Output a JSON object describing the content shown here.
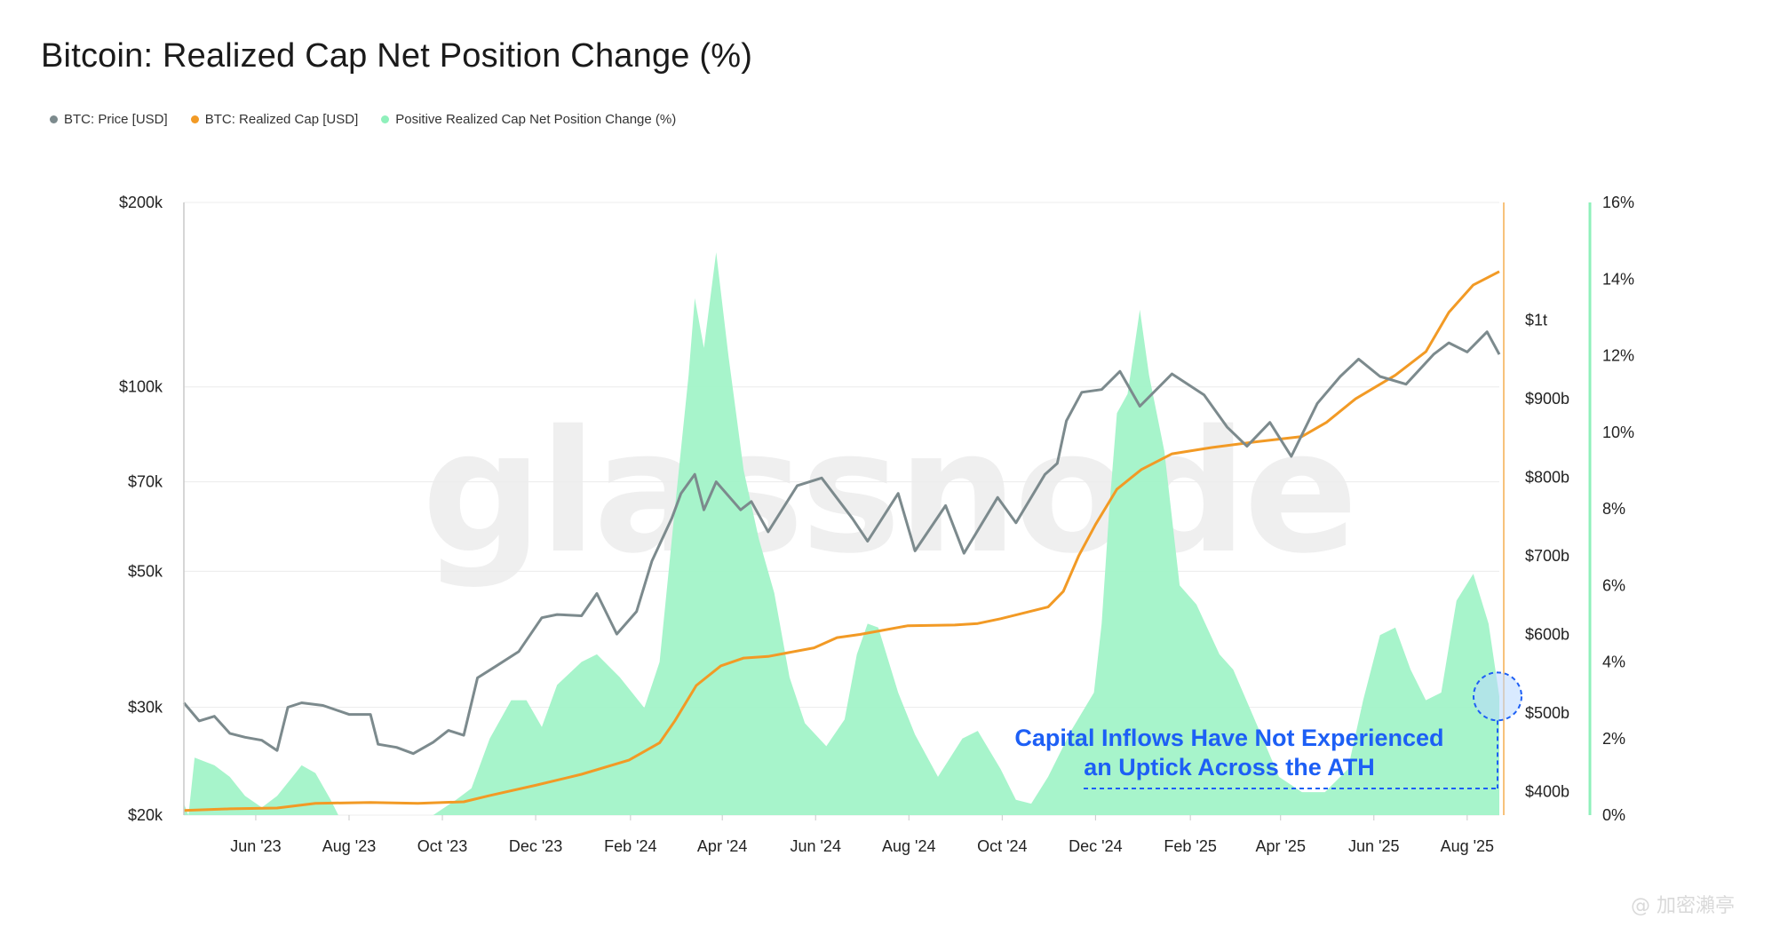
{
  "chart_data": {
    "type": "line",
    "title": "Bitcoin: Realized Cap Net Position Change (%)",
    "legend": [
      {
        "name": "BTC: Price [USD]",
        "color": "#7c8a8d"
      },
      {
        "name": "BTC: Realized Cap [USD]",
        "color": "#f29a25"
      },
      {
        "name": "Positive Realized Cap Net Position Change (%)",
        "color": "#8ff0bb"
      }
    ],
    "legend_placement": "top-left",
    "x_tick_labels": [
      "Jun '23",
      "Aug '23",
      "Oct '23",
      "Dec '23",
      "Feb '24",
      "Apr '24",
      "Jun '24",
      "Aug '24",
      "Oct '24",
      "Dec '24",
      "Feb '25",
      "Apr '25",
      "Jun '25",
      "Aug '25"
    ],
    "x_ticks": [
      "2023-06-01",
      "2023-08-01",
      "2023-10-01",
      "2023-12-01",
      "2024-02-01",
      "2024-04-01",
      "2024-06-01",
      "2024-08-01",
      "2024-10-01",
      "2024-12-01",
      "2025-02-01",
      "2025-04-01",
      "2025-06-01",
      "2025-08-01"
    ],
    "x_range": [
      "2023-04-15",
      "2025-08-22"
    ],
    "y_left": {
      "scale": "log",
      "range": [
        20000,
        200000
      ],
      "ticks": [
        200000,
        100000,
        70000,
        50000,
        30000,
        20000
      ],
      "tick_labels": [
        "$200k",
        "$100k",
        "$70k",
        "$50k",
        "$30k",
        "$20k"
      ]
    },
    "y_right_cap": {
      "scale": "linear",
      "range": [
        370,
        1150
      ],
      "ticks": [
        1000,
        900,
        800,
        700,
        600,
        500,
        400
      ],
      "tick_labels": [
        "$1t",
        "$900b",
        "$800b",
        "$700b",
        "$600b",
        "$500b",
        "$400b"
      ]
    },
    "y_right_pct": {
      "scale": "linear",
      "range": [
        0,
        16
      ],
      "ticks": [
        16,
        14,
        12,
        10,
        8,
        6,
        4,
        2,
        0
      ],
      "tick_labels": [
        "16%",
        "14%",
        "12%",
        "10%",
        "8%",
        "6%",
        "4%",
        "2%",
        "0%"
      ]
    },
    "series": [
      {
        "name": "BTC: Price [USD]",
        "axis": "left",
        "points": [
          [
            "2023-04-15",
            30500
          ],
          [
            "2023-04-25",
            28500
          ],
          [
            "2023-05-05",
            29000
          ],
          [
            "2023-05-15",
            27200
          ],
          [
            "2023-05-25",
            26800
          ],
          [
            "2023-06-05",
            26500
          ],
          [
            "2023-06-15",
            25500
          ],
          [
            "2023-06-22",
            30000
          ],
          [
            "2023-07-01",
            30500
          ],
          [
            "2023-07-15",
            30200
          ],
          [
            "2023-08-01",
            29200
          ],
          [
            "2023-08-15",
            29200
          ],
          [
            "2023-08-20",
            26100
          ],
          [
            "2023-09-01",
            25800
          ],
          [
            "2023-09-12",
            25200
          ],
          [
            "2023-09-25",
            26300
          ],
          [
            "2023-10-05",
            27500
          ],
          [
            "2023-10-15",
            27000
          ],
          [
            "2023-10-24",
            33500
          ],
          [
            "2023-11-05",
            35000
          ],
          [
            "2023-11-20",
            37000
          ],
          [
            "2023-12-05",
            42000
          ],
          [
            "2023-12-15",
            42500
          ],
          [
            "2023-12-31",
            42300
          ],
          [
            "2024-01-10",
            46000
          ],
          [
            "2024-01-23",
            39500
          ],
          [
            "2024-02-05",
            43000
          ],
          [
            "2024-02-15",
            52000
          ],
          [
            "2024-02-28",
            61000
          ],
          [
            "2024-03-05",
            67000
          ],
          [
            "2024-03-14",
            72000
          ],
          [
            "2024-03-20",
            63000
          ],
          [
            "2024-03-28",
            70000
          ],
          [
            "2024-04-13",
            63000
          ],
          [
            "2024-04-20",
            65000
          ],
          [
            "2024-05-01",
            58000
          ],
          [
            "2024-05-20",
            69000
          ],
          [
            "2024-06-05",
            71000
          ],
          [
            "2024-06-25",
            61000
          ],
          [
            "2024-07-05",
            56000
          ],
          [
            "2024-07-25",
            67000
          ],
          [
            "2024-08-05",
            54000
          ],
          [
            "2024-08-25",
            64000
          ],
          [
            "2024-09-06",
            53500
          ],
          [
            "2024-09-28",
            66000
          ],
          [
            "2024-10-10",
            60000
          ],
          [
            "2024-10-29",
            72000
          ],
          [
            "2024-11-06",
            75000
          ],
          [
            "2024-11-12",
            88000
          ],
          [
            "2024-11-22",
            98000
          ],
          [
            "2024-12-05",
            99000
          ],
          [
            "2024-12-17",
            106000
          ],
          [
            "2024-12-30",
            93000
          ],
          [
            "2025-01-20",
            105000
          ],
          [
            "2025-02-10",
            97000
          ],
          [
            "2025-02-25",
            86000
          ],
          [
            "2025-03-10",
            80000
          ],
          [
            "2025-03-25",
            87500
          ],
          [
            "2025-04-08",
            77000
          ],
          [
            "2025-04-25",
            94000
          ],
          [
            "2025-05-10",
            104000
          ],
          [
            "2025-05-22",
            111000
          ],
          [
            "2025-06-05",
            104000
          ],
          [
            "2025-06-22",
            101000
          ],
          [
            "2025-07-10",
            113000
          ],
          [
            "2025-07-20",
            118000
          ],
          [
            "2025-08-01",
            114000
          ],
          [
            "2025-08-14",
            123000
          ],
          [
            "2025-08-22",
            113000
          ]
        ]
      },
      {
        "name": "BTC: Realized Cap [USD]",
        "axis": "right_cap",
        "points": [
          [
            "2023-04-15",
            376
          ],
          [
            "2023-05-15",
            378
          ],
          [
            "2023-06-15",
            379
          ],
          [
            "2023-07-10",
            385
          ],
          [
            "2023-08-15",
            386
          ],
          [
            "2023-09-15",
            385
          ],
          [
            "2023-10-15",
            387
          ],
          [
            "2023-11-01",
            395
          ],
          [
            "2023-12-01",
            408
          ],
          [
            "2023-12-31",
            422
          ],
          [
            "2024-01-31",
            440
          ],
          [
            "2024-02-20",
            462
          ],
          [
            "2024-03-01",
            490
          ],
          [
            "2024-03-15",
            535
          ],
          [
            "2024-03-31",
            560
          ],
          [
            "2024-04-15",
            570
          ],
          [
            "2024-05-01",
            572
          ],
          [
            "2024-05-31",
            583
          ],
          [
            "2024-06-15",
            596
          ],
          [
            "2024-06-30",
            600
          ],
          [
            "2024-07-31",
            611
          ],
          [
            "2024-08-31",
            612
          ],
          [
            "2024-09-15",
            614
          ],
          [
            "2024-09-30",
            620
          ],
          [
            "2024-10-31",
            635
          ],
          [
            "2024-11-10",
            655
          ],
          [
            "2024-11-20",
            700
          ],
          [
            "2024-12-01",
            740
          ],
          [
            "2024-12-15",
            785
          ],
          [
            "2024-12-31",
            810
          ],
          [
            "2025-01-20",
            830
          ],
          [
            "2025-02-15",
            838
          ],
          [
            "2025-03-15",
            845
          ],
          [
            "2025-04-15",
            852
          ],
          [
            "2025-05-01",
            870
          ],
          [
            "2025-05-20",
            900
          ],
          [
            "2025-06-15",
            930
          ],
          [
            "2025-07-05",
            960
          ],
          [
            "2025-07-20",
            1010
          ],
          [
            "2025-08-05",
            1045
          ],
          [
            "2025-08-22",
            1062
          ]
        ]
      },
      {
        "name": "Positive Realized Cap Net Position Change (%)",
        "axis": "right_pct",
        "points": [
          [
            "2023-04-15",
            0.3
          ],
          [
            "2023-04-18",
            0
          ],
          [
            "2023-04-22",
            1.5
          ],
          [
            "2023-05-05",
            1.3
          ],
          [
            "2023-05-15",
            1.0
          ],
          [
            "2023-05-25",
            0.5
          ],
          [
            "2023-06-05",
            0.2
          ],
          [
            "2023-06-15",
            0.5
          ],
          [
            "2023-06-25",
            1.0
          ],
          [
            "2023-07-01",
            1.3
          ],
          [
            "2023-07-10",
            1.1
          ],
          [
            "2023-07-20",
            0.4
          ],
          [
            "2023-07-25",
            0
          ],
          [
            "2023-09-25",
            0
          ],
          [
            "2023-10-10",
            0.4
          ],
          [
            "2023-10-20",
            0.7
          ],
          [
            "2023-11-01",
            2.0
          ],
          [
            "2023-11-15",
            3.0
          ],
          [
            "2023-11-25",
            3.0
          ],
          [
            "2023-12-05",
            2.3
          ],
          [
            "2023-12-15",
            3.4
          ],
          [
            "2023-12-31",
            4.0
          ],
          [
            "2024-01-10",
            4.2
          ],
          [
            "2024-01-25",
            3.6
          ],
          [
            "2024-02-10",
            2.8
          ],
          [
            "2024-02-20",
            4.0
          ],
          [
            "2024-03-01",
            8.0
          ],
          [
            "2024-03-10",
            11.5
          ],
          [
            "2024-03-14",
            13.5
          ],
          [
            "2024-03-20",
            12.2
          ],
          [
            "2024-03-28",
            14.7
          ],
          [
            "2024-04-05",
            12.0
          ],
          [
            "2024-04-15",
            9.0
          ],
          [
            "2024-04-25",
            7.2
          ],
          [
            "2024-05-05",
            5.8
          ],
          [
            "2024-05-15",
            3.6
          ],
          [
            "2024-05-25",
            2.4
          ],
          [
            "2024-06-08",
            1.8
          ],
          [
            "2024-06-20",
            2.5
          ],
          [
            "2024-06-28",
            4.2
          ],
          [
            "2024-07-05",
            5.0
          ],
          [
            "2024-07-12",
            4.9
          ],
          [
            "2024-07-25",
            3.2
          ],
          [
            "2024-08-05",
            2.1
          ],
          [
            "2024-08-20",
            1.0
          ],
          [
            "2024-09-05",
            2.0
          ],
          [
            "2024-09-15",
            2.2
          ],
          [
            "2024-09-30",
            1.2
          ],
          [
            "2024-10-10",
            0.4
          ],
          [
            "2024-10-20",
            0.3
          ],
          [
            "2024-10-31",
            1.0
          ],
          [
            "2024-11-15",
            2.2
          ],
          [
            "2024-11-30",
            3.2
          ],
          [
            "2024-12-05",
            5.0
          ],
          [
            "2024-12-10",
            8.0
          ],
          [
            "2024-12-15",
            10.5
          ],
          [
            "2024-12-22",
            11.0
          ],
          [
            "2024-12-30",
            13.2
          ],
          [
            "2025-01-05",
            11.5
          ],
          [
            "2025-01-15",
            9.5
          ],
          [
            "2025-01-25",
            6.0
          ],
          [
            "2025-02-05",
            5.5
          ],
          [
            "2025-02-20",
            4.2
          ],
          [
            "2025-03-01",
            3.8
          ],
          [
            "2025-03-15",
            2.5
          ],
          [
            "2025-03-31",
            1.0
          ],
          [
            "2025-04-15",
            0.6
          ],
          [
            "2025-04-30",
            0.6
          ],
          [
            "2025-05-15",
            1.2
          ],
          [
            "2025-05-25",
            3.0
          ],
          [
            "2025-06-05",
            4.7
          ],
          [
            "2025-06-15",
            4.9
          ],
          [
            "2025-06-25",
            3.8
          ],
          [
            "2025-07-05",
            3.0
          ],
          [
            "2025-07-15",
            3.2
          ],
          [
            "2025-07-25",
            5.6
          ],
          [
            "2025-08-05",
            6.3
          ],
          [
            "2025-08-15",
            5.0
          ],
          [
            "2025-08-22",
            3.1
          ]
        ]
      }
    ],
    "annotation": {
      "lines": [
        "Capital Inflows Have Not Experienced",
        "an Uptick Across the ATH"
      ],
      "color": "#1d5ff5",
      "circle_at": [
        "2025-08-22",
        3.1
      ]
    },
    "watermark": "glassnode",
    "grid": true
  },
  "credit": "@ 加密瀨亭",
  "colors": {
    "price": "#7c8a8d",
    "cap": "#f29a25",
    "pct_fill": "#a2f3c8",
    "pct_axis": "#8ff0bb",
    "grid": "#ececec",
    "annotation": "#1d5ff5"
  }
}
